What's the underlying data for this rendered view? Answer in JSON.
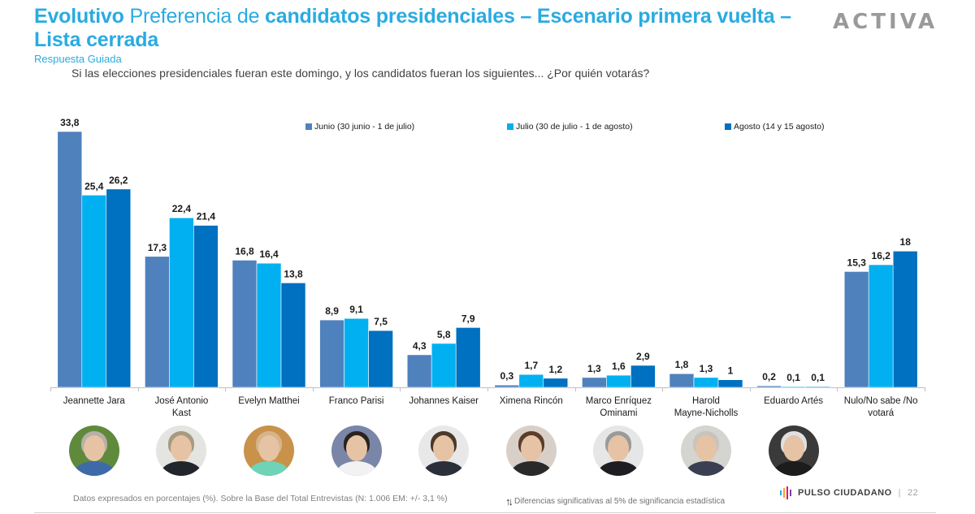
{
  "header": {
    "title_part1": "Evolutivo",
    "title_part2": "Preferencia de",
    "title_part3": "candidatos presidenciales – Escenario primera vuelta – Lista cerrada",
    "subtitle": "Respuesta Guiada",
    "question": "Si las elecciones presidenciales fueran este domingo, y los candidatos fueran los siguientes... ¿Por quién votarás?",
    "logo": "ACTIVA"
  },
  "chart_data": {
    "type": "bar",
    "title": "Evolutivo Preferencia de candidatos presidenciales – Escenario primera vuelta – Lista cerrada",
    "xlabel": "",
    "ylabel": "",
    "ylim": [
      0,
      35
    ],
    "grid": false,
    "legend_position": "top-center",
    "categories": [
      "Jeannette Jara",
      "José Antonio Kast",
      "Evelyn Matthei",
      "Franco Parisi",
      "Johannes Kaiser",
      "Ximena Rincón",
      "Marco Enríquez Ominami",
      "Harold Mayne-Nicholls",
      "Eduardo Artés",
      "Nulo/No sabe /No votará"
    ],
    "series": [
      {
        "name": "Junio (30 junio - 1 de julio)",
        "color": "#4f81bd",
        "values": [
          33.8,
          17.3,
          16.8,
          8.9,
          4.3,
          0.3,
          1.3,
          1.8,
          0.2,
          15.3
        ],
        "labels": [
          "33,8",
          "17,3",
          "16,8",
          "8,9",
          "4,3",
          "0,3",
          "1,3",
          "1,8",
          "0,2",
          "15,3"
        ]
      },
      {
        "name": "Julio (30 de julio - 1 de agosto)",
        "color": "#00b0f0",
        "values": [
          25.4,
          22.4,
          16.4,
          9.1,
          5.8,
          1.7,
          1.6,
          1.3,
          0.1,
          16.2
        ],
        "labels": [
          "25,4",
          "22,4",
          "16,4",
          "9,1",
          "5,8",
          "1,7",
          "1,6",
          "1,3",
          "0,1",
          "16,2"
        ]
      },
      {
        "name": "Agosto (14 y 15 agosto)",
        "color": "#0070c0",
        "values": [
          26.2,
          21.4,
          13.8,
          7.5,
          7.9,
          1.2,
          2.9,
          1.0,
          0.1,
          18
        ],
        "labels": [
          "26,2",
          "21,4",
          "13,8",
          "7,5",
          "7,9",
          "1,2",
          "2,9",
          "1",
          "0,1",
          "18"
        ]
      }
    ]
  },
  "category_lines": [
    [
      "Jeannette Jara"
    ],
    [
      "José Antonio",
      "Kast"
    ],
    [
      "Evelyn Matthei"
    ],
    [
      "Franco Parisi"
    ],
    [
      "Johannes Kaiser"
    ],
    [
      "Ximena Rincón"
    ],
    [
      "Marco Enríquez",
      "Ominami"
    ],
    [
      "Harold",
      "Mayne-Nicholls"
    ],
    [
      "Eduardo Artés"
    ],
    [
      "Nulo/No sabe /No",
      "votará"
    ]
  ],
  "portraits": [
    {
      "name": "Jeannette Jara",
      "bg": "#5f8a3c",
      "clothes": "#3f6aa8",
      "hair": "#b8b0a6"
    },
    {
      "name": "José Antonio Kast",
      "bg": "#e4e4e0",
      "clothes": "#23252c",
      "hair": "#a89a82"
    },
    {
      "name": "Evelyn Matthei",
      "bg": "#c8924a",
      "clothes": "#6fd3b8",
      "hair": "#d6b48a"
    },
    {
      "name": "Franco Parisi",
      "bg": "#7a86a8",
      "clothes": "#f2f2f2",
      "hair": "#2a221c"
    },
    {
      "name": "Johannes Kaiser",
      "bg": "#e8e8e8",
      "clothes": "#2b2f3a",
      "hair": "#4a3a2c"
    },
    {
      "name": "Ximena Rincón",
      "bg": "#d8d0c8",
      "clothes": "#2a2a2a",
      "hair": "#5a3d2a"
    },
    {
      "name": "Marco Enríquez Ominami",
      "bg": "#e6e6e6",
      "clothes": "#1e1e22",
      "hair": "#9a9a9a"
    },
    {
      "name": "Harold Mayne-Nicholls",
      "bg": "#d4d4d0",
      "clothes": "#3a3f52",
      "hair": "#c8c4bc"
    },
    {
      "name": "Eduardo Artés",
      "bg": "#3a3a3a",
      "clothes": "#1c1c1c",
      "hair": "#e0e0e0"
    }
  ],
  "footer": {
    "note": "Datos expresados en porcentajes (%). Sobre la Base del Total Entrevistas (N: 1.006  EM: +/- 3,1 %)",
    "sig_arrows": "↑↓",
    "sig_text": "Diferencias  significativas  al 5% de significancia estadística",
    "brand": "PULSO CIUDADANO",
    "brand_colors": [
      "#29abe2",
      "#f5a623",
      "#e6007e",
      "#7b3fa0"
    ],
    "separator": "|",
    "page": "22"
  }
}
